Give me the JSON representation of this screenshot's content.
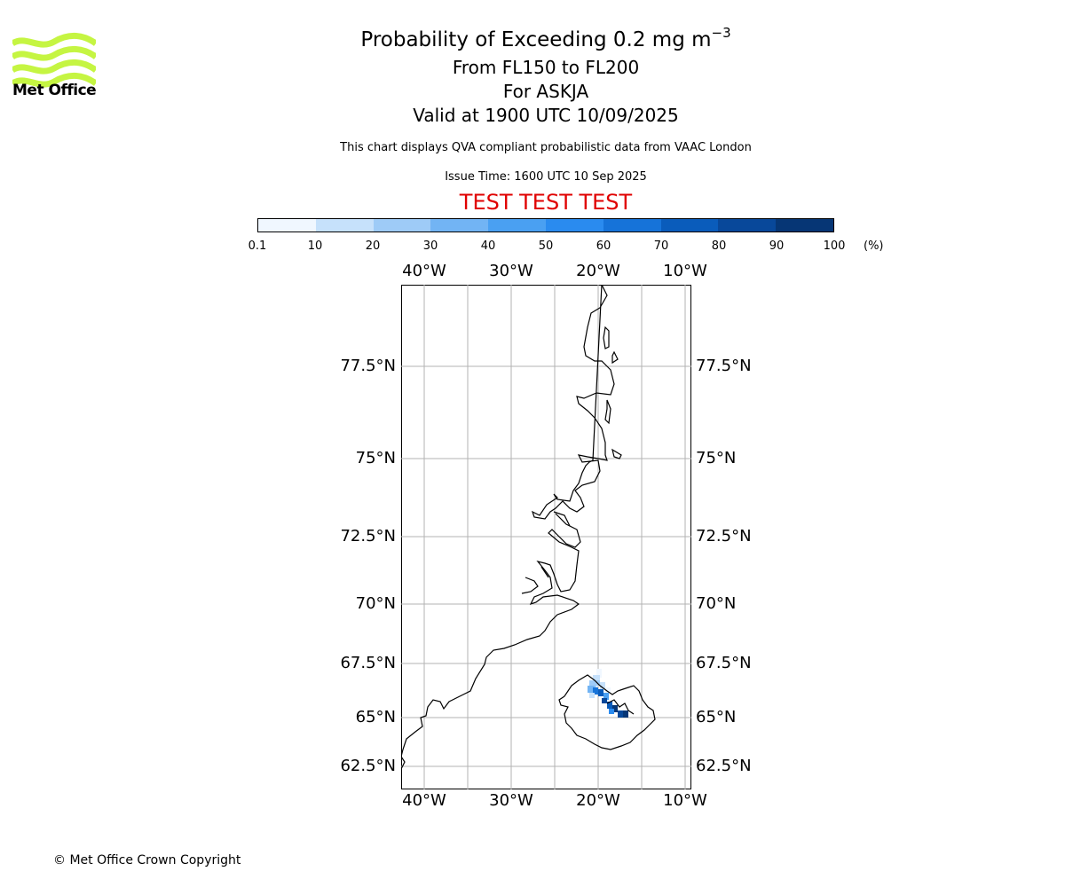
{
  "title": {
    "main": "Probability of Exceeding 0.2 mg m",
    "main_sup": "−3",
    "line2": "From FL150 to FL200",
    "line3": "For ASKJA",
    "line4": "Valid at 1900 UTC 10/09/2025"
  },
  "logo": {
    "text": "Met Office",
    "icon": "met-office-waves-logo",
    "color": "#c5f542"
  },
  "description": "This chart displays QVA compliant probabilistic data from VAAC London",
  "issue_time": "Issue Time: 1600 UTC 10 Sep 2025",
  "test_banner": {
    "text": "TEST TEST TEST",
    "color": "#e00000"
  },
  "colorbar": {
    "ticks": [
      "0.1",
      "10",
      "20",
      "30",
      "40",
      "50",
      "60",
      "70",
      "80",
      "90",
      "100"
    ],
    "unit": "(%)",
    "colors": [
      "#f0f7ff",
      "#c6e1fb",
      "#9ecbf7",
      "#72b4f4",
      "#4aa0f2",
      "#2a8bef",
      "#1673d9",
      "#0a5cbb",
      "#08489a",
      "#063675"
    ]
  },
  "map": {
    "lon_labels": [
      "40°W",
      "30°W",
      "20°W",
      "10°W"
    ],
    "lat_labels": [
      "77.5°N",
      "75°N",
      "72.5°N",
      "70°N",
      "67.5°N",
      "65°N",
      "62.5°N"
    ],
    "grid": true,
    "features": [
      "Greenland east coast",
      "Iceland"
    ],
    "plume": "ash probability concentrated over north-central Iceland"
  },
  "copyright": "© Met Office Crown Copyright"
}
